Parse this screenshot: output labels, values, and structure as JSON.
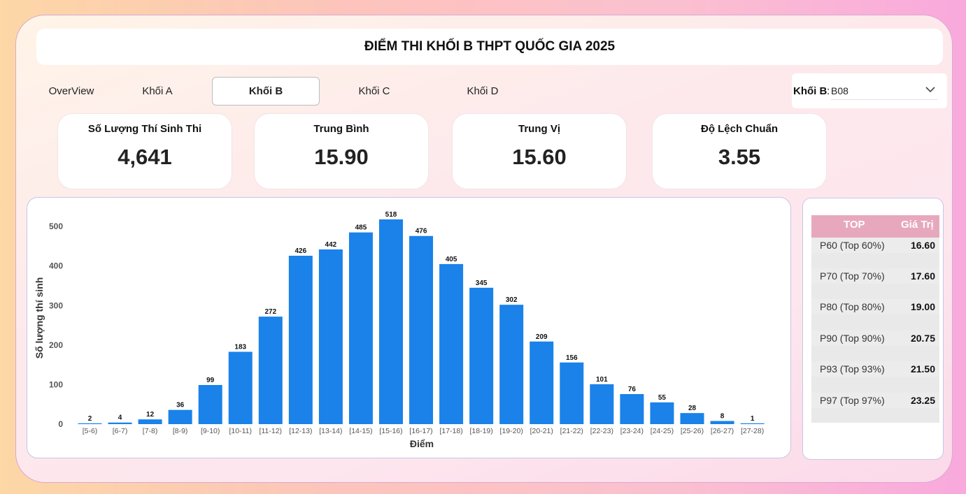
{
  "title": "ĐIỂM THI KHỐI B THPT QUỐC GIA 2025",
  "tabs": [
    {
      "label": "OverView",
      "active": false
    },
    {
      "label": "Khối A",
      "active": false
    },
    {
      "label": "Khối B",
      "active": true
    },
    {
      "label": "Khối C",
      "active": false
    },
    {
      "label": "Khối D",
      "active": false
    }
  ],
  "filter": {
    "label": "Khối B",
    "separator": ":",
    "value": "B08"
  },
  "kpis": [
    {
      "label": "Số Lượng Thí Sinh Thi",
      "value": "4,641"
    },
    {
      "label": "Trung Bình",
      "value": "15.90"
    },
    {
      "label": "Trung Vị",
      "value": "15.60"
    },
    {
      "label": "Độ Lệch Chuẩn",
      "value": "3.55"
    }
  ],
  "colors": {
    "bar": "#1a82e8",
    "table_header": "#e7a8bd"
  },
  "chart_data": {
    "type": "bar",
    "xlabel": "Điểm",
    "ylabel": "Số lượng thí sinh",
    "ylim": [
      0,
      560
    ],
    "yticks": [
      0,
      100,
      200,
      300,
      400,
      500
    ],
    "grid": false,
    "categories": [
      "[5-6)",
      "[6-7)",
      "[7-8)",
      "[8-9)",
      "[9-10)",
      "[10-11)",
      "[11-12)",
      "[12-13)",
      "[13-14)",
      "[14-15)",
      "[15-16)",
      "[16-17)",
      "[17-18)",
      "[18-19)",
      "[19-20)",
      "[20-21)",
      "[21-22)",
      "[22-23)",
      "[23-24)",
      "[24-25)",
      "[25-26)",
      "[26-27)",
      "[27-28)"
    ],
    "values": [
      2,
      4,
      12,
      36,
      99,
      183,
      272,
      426,
      442,
      485,
      518,
      476,
      405,
      345,
      302,
      209,
      156,
      101,
      76,
      55,
      28,
      8,
      1
    ]
  },
  "percentile_table": {
    "headers": [
      "TOP",
      "Giá Trị"
    ],
    "rows": [
      {
        "name": "P60 (Top 60%)",
        "value": "16.60"
      },
      {
        "name": "P70 (Top 70%)",
        "value": "17.60"
      },
      {
        "name": "P80 (Top 80%)",
        "value": "19.00"
      },
      {
        "name": "P90 (Top 90%)",
        "value": "20.75"
      },
      {
        "name": "P93 (Top 93%)",
        "value": "21.50"
      },
      {
        "name": "P97 (Top 97%)",
        "value": "23.25"
      }
    ]
  }
}
